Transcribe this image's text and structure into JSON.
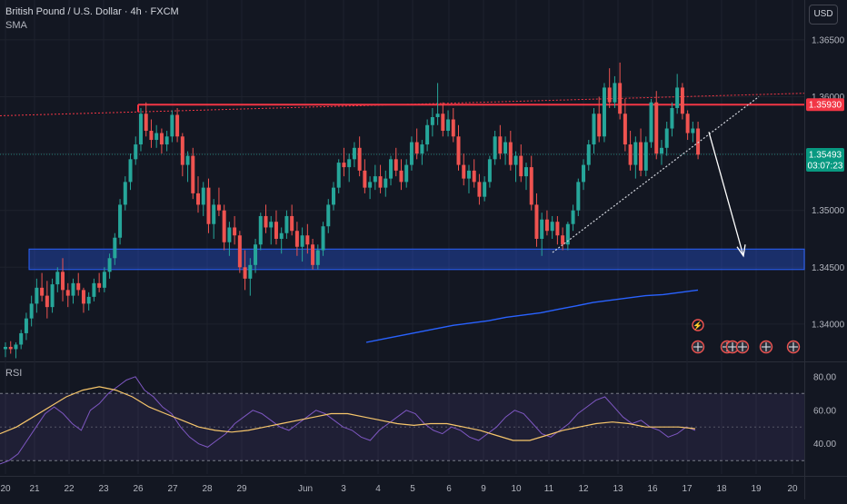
{
  "header": {
    "symbol": "British Pound / U.S. Dollar · 4h · FXCM",
    "indicator": "SMA",
    "currency": "USD"
  },
  "rsi_pane": {
    "label": "RSI",
    "ticks": [
      "80.00",
      "60.00",
      "40.00"
    ]
  },
  "price_tags": {
    "resistance": "1.35930",
    "last_price": "1.35493",
    "countdown": "03:07:23"
  },
  "colors": {
    "background": "#131722",
    "up": "#26a69a",
    "down": "#ef5350",
    "resistance": "#f23645",
    "support_zone": "#2962ff",
    "sma": "#2962ff",
    "rsi": "#7e57c2",
    "rsi_ma": "#f7c66b"
  },
  "chart_data": [
    {
      "type": "candlestick",
      "title": "British Pound / U.S. Dollar · 4h · FXCM",
      "x_ticks": [
        "20",
        "21",
        "22",
        "23",
        "26",
        "27",
        "28",
        "29",
        "Jun",
        "3",
        "4",
        "5",
        "6",
        "9",
        "10",
        "11",
        "12",
        "13",
        "16",
        "17",
        "18",
        "19",
        "20"
      ],
      "y_ticks": [
        "1.36500",
        "1.36000",
        "1.35500",
        "1.35000",
        "1.34500",
        "1.34000"
      ],
      "ylim": [
        1.3368,
        1.3685
      ],
      "resistance_level": 1.3593,
      "support_zone": [
        1.3448,
        1.3466
      ],
      "last_price": 1.35493,
      "candles_ohlc": [
        [
          1.3378,
          1.3384,
          1.3371,
          1.338
        ],
        [
          1.338,
          1.3385,
          1.3374,
          1.3378
        ],
        [
          1.3378,
          1.3384,
          1.337,
          1.3382
        ],
        [
          1.3382,
          1.3395,
          1.3378,
          1.3392
        ],
        [
          1.3392,
          1.341,
          1.3386,
          1.3405
        ],
        [
          1.3405,
          1.3425,
          1.3398,
          1.3418
        ],
        [
          1.3418,
          1.344,
          1.341,
          1.3432
        ],
        [
          1.3432,
          1.3445,
          1.342,
          1.3425
        ],
        [
          1.3425,
          1.3438,
          1.3405,
          1.3415
        ],
        [
          1.3415,
          1.344,
          1.341,
          1.3435
        ],
        [
          1.3435,
          1.345,
          1.3428,
          1.3446
        ],
        [
          1.3446,
          1.3458,
          1.342,
          1.343
        ],
        [
          1.343,
          1.3436,
          1.3415,
          1.3425
        ],
        [
          1.3425,
          1.344,
          1.3418,
          1.3436
        ],
        [
          1.3436,
          1.3445,
          1.3425,
          1.343
        ],
        [
          1.343,
          1.3432,
          1.341,
          1.3418
        ],
        [
          1.3418,
          1.3428,
          1.3412,
          1.3424
        ],
        [
          1.3424,
          1.344,
          1.342,
          1.3436
        ],
        [
          1.3436,
          1.3445,
          1.3428,
          1.3432
        ],
        [
          1.3432,
          1.345,
          1.3428,
          1.3446
        ],
        [
          1.3446,
          1.3462,
          1.344,
          1.3458
        ],
        [
          1.3458,
          1.348,
          1.3452,
          1.3476
        ],
        [
          1.3476,
          1.351,
          1.347,
          1.3505
        ],
        [
          1.3505,
          1.353,
          1.35,
          1.3525
        ],
        [
          1.3525,
          1.355,
          1.3518,
          1.3545
        ],
        [
          1.3545,
          1.3565,
          1.354,
          1.3558
        ],
        [
          1.3558,
          1.359,
          1.3552,
          1.3585
        ],
        [
          1.3585,
          1.3595,
          1.3565,
          1.357
        ],
        [
          1.357,
          1.358,
          1.3555,
          1.3562
        ],
        [
          1.3562,
          1.3575,
          1.3555,
          1.3568
        ],
        [
          1.3568,
          1.3572,
          1.355,
          1.3558
        ],
        [
          1.3558,
          1.357,
          1.3552,
          1.3565
        ],
        [
          1.3565,
          1.3588,
          1.356,
          1.3584
        ],
        [
          1.3584,
          1.359,
          1.356,
          1.3565
        ],
        [
          1.3565,
          1.3568,
          1.353,
          1.354
        ],
        [
          1.354,
          1.3552,
          1.3525,
          1.3548
        ],
        [
          1.3548,
          1.3555,
          1.351,
          1.3515
        ],
        [
          1.3515,
          1.353,
          1.3498,
          1.3505
        ],
        [
          1.3505,
          1.3525,
          1.3495,
          1.352
        ],
        [
          1.352,
          1.3528,
          1.348,
          1.3488
        ],
        [
          1.3488,
          1.351,
          1.3475,
          1.3505
        ],
        [
          1.3505,
          1.352,
          1.3495,
          1.35
        ],
        [
          1.35,
          1.3505,
          1.3465,
          1.3472
        ],
        [
          1.3472,
          1.349,
          1.346,
          1.3485
        ],
        [
          1.3485,
          1.3495,
          1.347,
          1.3478
        ],
        [
          1.3478,
          1.3482,
          1.3445,
          1.345
        ],
        [
          1.345,
          1.3465,
          1.343,
          1.344
        ],
        [
          1.344,
          1.3458,
          1.3425,
          1.3452
        ],
        [
          1.3452,
          1.3475,
          1.3445,
          1.347
        ],
        [
          1.347,
          1.3498,
          1.3465,
          1.3495
        ],
        [
          1.3495,
          1.3505,
          1.348,
          1.3485
        ],
        [
          1.3485,
          1.3495,
          1.347,
          1.349
        ],
        [
          1.349,
          1.35,
          1.347,
          1.3475
        ],
        [
          1.3475,
          1.3485,
          1.3462,
          1.348
        ],
        [
          1.348,
          1.35,
          1.3475,
          1.3495
        ],
        [
          1.3495,
          1.3505,
          1.3478,
          1.3482
        ],
        [
          1.3482,
          1.349,
          1.346,
          1.3468
        ],
        [
          1.3468,
          1.3485,
          1.3455,
          1.3478
        ],
        [
          1.3478,
          1.3488,
          1.3462,
          1.347
        ],
        [
          1.347,
          1.3475,
          1.3448,
          1.3452
        ],
        [
          1.3452,
          1.347,
          1.3448,
          1.3465
        ],
        [
          1.3465,
          1.349,
          1.346,
          1.3486
        ],
        [
          1.3486,
          1.351,
          1.348,
          1.3505
        ],
        [
          1.3505,
          1.3525,
          1.35,
          1.352
        ],
        [
          1.352,
          1.3545,
          1.3515,
          1.3542
        ],
        [
          1.3542,
          1.3555,
          1.353,
          1.3538
        ],
        [
          1.3538,
          1.355,
          1.3525,
          1.3545
        ],
        [
          1.3545,
          1.356,
          1.3538,
          1.3555
        ],
        [
          1.3555,
          1.3565,
          1.353,
          1.3535
        ],
        [
          1.3535,
          1.3545,
          1.3515,
          1.352
        ],
        [
          1.352,
          1.353,
          1.351,
          1.3525
        ],
        [
          1.3525,
          1.354,
          1.3518,
          1.353
        ],
        [
          1.353,
          1.354,
          1.3515,
          1.352
        ],
        [
          1.352,
          1.3535,
          1.3512,
          1.3528
        ],
        [
          1.3528,
          1.3548,
          1.3522,
          1.3545
        ],
        [
          1.3545,
          1.3555,
          1.353,
          1.3535
        ],
        [
          1.3535,
          1.3545,
          1.3518,
          1.3525
        ],
        [
          1.3525,
          1.3545,
          1.352,
          1.354
        ],
        [
          1.354,
          1.3565,
          1.3535,
          1.356
        ],
        [
          1.356,
          1.3572,
          1.3545,
          1.355
        ],
        [
          1.355,
          1.3562,
          1.354,
          1.3558
        ],
        [
          1.3558,
          1.358,
          1.3552,
          1.3575
        ],
        [
          1.3575,
          1.359,
          1.3565,
          1.3582
        ],
        [
          1.3582,
          1.3612,
          1.3575,
          1.3585
        ],
        [
          1.3585,
          1.3595,
          1.3565,
          1.357
        ],
        [
          1.357,
          1.3588,
          1.3565,
          1.358
        ],
        [
          1.358,
          1.359,
          1.356,
          1.3565
        ],
        [
          1.3565,
          1.3575,
          1.3535,
          1.354
        ],
        [
          1.354,
          1.355,
          1.3522,
          1.3528
        ],
        [
          1.3528,
          1.354,
          1.3515,
          1.3535
        ],
        [
          1.3535,
          1.3545,
          1.352,
          1.3525
        ],
        [
          1.3525,
          1.3532,
          1.3505,
          1.3512
        ],
        [
          1.3512,
          1.353,
          1.3508,
          1.3525
        ],
        [
          1.3525,
          1.3548,
          1.352,
          1.3545
        ],
        [
          1.3545,
          1.357,
          1.354,
          1.3565
        ],
        [
          1.3565,
          1.3575,
          1.3545,
          1.355
        ],
        [
          1.355,
          1.3565,
          1.354,
          1.356
        ],
        [
          1.356,
          1.357,
          1.3535,
          1.354
        ],
        [
          1.354,
          1.3552,
          1.3525,
          1.3548
        ],
        [
          1.3548,
          1.3558,
          1.3525,
          1.353
        ],
        [
          1.353,
          1.3542,
          1.3518,
          1.3538
        ],
        [
          1.3538,
          1.3548,
          1.35,
          1.3505
        ],
        [
          1.3505,
          1.3515,
          1.3468,
          1.3475
        ],
        [
          1.3475,
          1.3498,
          1.346,
          1.3492
        ],
        [
          1.3492,
          1.35,
          1.3478,
          1.3482
        ],
        [
          1.3482,
          1.3495,
          1.3475,
          1.349
        ],
        [
          1.349,
          1.3495,
          1.347,
          1.3478
        ],
        [
          1.3478,
          1.3485,
          1.3465,
          1.347
        ],
        [
          1.347,
          1.349,
          1.3465,
          1.3488
        ],
        [
          1.3488,
          1.3505,
          1.3482,
          1.35
        ],
        [
          1.35,
          1.3528,
          1.3495,
          1.3525
        ],
        [
          1.3525,
          1.3545,
          1.3518,
          1.354
        ],
        [
          1.354,
          1.3562,
          1.3535,
          1.3558
        ],
        [
          1.3558,
          1.359,
          1.355,
          1.3585
        ],
        [
          1.3585,
          1.36,
          1.356,
          1.3565
        ],
        [
          1.3565,
          1.3612,
          1.356,
          1.3608
        ],
        [
          1.3608,
          1.3625,
          1.359,
          1.3595
        ],
        [
          1.3595,
          1.3618,
          1.359,
          1.3612
        ],
        [
          1.3612,
          1.363,
          1.358,
          1.3585
        ],
        [
          1.3585,
          1.3598,
          1.3552,
          1.3558
        ],
        [
          1.3558,
          1.357,
          1.3535,
          1.354
        ],
        [
          1.354,
          1.3565,
          1.3528,
          1.356
        ],
        [
          1.356,
          1.3572,
          1.353,
          1.3535
        ],
        [
          1.3535,
          1.3565,
          1.353,
          1.356
        ],
        [
          1.356,
          1.3598,
          1.3555,
          1.3595
        ],
        [
          1.3595,
          1.3605,
          1.3545,
          1.355
        ],
        [
          1.355,
          1.3562,
          1.354,
          1.3555
        ],
        [
          1.3555,
          1.3578,
          1.3548,
          1.3572
        ],
        [
          1.3572,
          1.3595,
          1.3565,
          1.359
        ],
        [
          1.359,
          1.362,
          1.3585,
          1.3608
        ],
        [
          1.3608,
          1.3612,
          1.358,
          1.3585
        ],
        [
          1.3585,
          1.3588,
          1.3562,
          1.3568
        ],
        [
          1.3568,
          1.3578,
          1.356,
          1.3572
        ],
        [
          1.3572,
          1.3578,
          1.3545,
          1.3549
        ]
      ],
      "series": [
        {
          "name": "SMA",
          "values": [
            1.3384,
            1.3387,
            1.339,
            1.3393,
            1.3396,
            1.3399,
            1.3401,
            1.3403,
            1.3406,
            1.3408,
            1.341,
            1.3413,
            1.3416,
            1.3419,
            1.3421,
            1.3423,
            1.3425,
            1.3426,
            1.3428,
            1.343
          ]
        }
      ]
    },
    {
      "type": "line",
      "title": "RSI",
      "y_ticks": [
        "80.00",
        "60.00",
        "40.00"
      ],
      "ylim": [
        22,
        88
      ],
      "band": [
        30,
        70
      ],
      "series": [
        {
          "name": "RSI",
          "values": [
            28,
            30,
            34,
            42,
            50,
            58,
            62,
            58,
            52,
            48,
            60,
            64,
            70,
            74,
            78,
            80,
            72,
            68,
            62,
            58,
            50,
            44,
            40,
            38,
            42,
            46,
            52,
            56,
            60,
            58,
            54,
            50,
            48,
            52,
            56,
            60,
            58,
            54,
            50,
            48,
            44,
            42,
            48,
            52,
            56,
            60,
            58,
            52,
            48,
            46,
            50,
            48,
            44,
            42,
            46,
            50,
            56,
            60,
            58,
            52,
            46,
            44,
            48,
            52,
            58,
            62,
            66,
            68,
            62,
            56,
            52,
            54,
            50,
            48,
            44,
            46,
            50,
            48
          ]
        },
        {
          "name": "RSI MA",
          "values": [
            46,
            50,
            56,
            62,
            68,
            72,
            74,
            72,
            68,
            62,
            58,
            54,
            50,
            48,
            47,
            48,
            50,
            52,
            54,
            56,
            58,
            58,
            56,
            54,
            52,
            51,
            52,
            52,
            50,
            48,
            45,
            42,
            42,
            45,
            48,
            50,
            52,
            53,
            52,
            50,
            50,
            50,
            49
          ]
        }
      ]
    }
  ]
}
